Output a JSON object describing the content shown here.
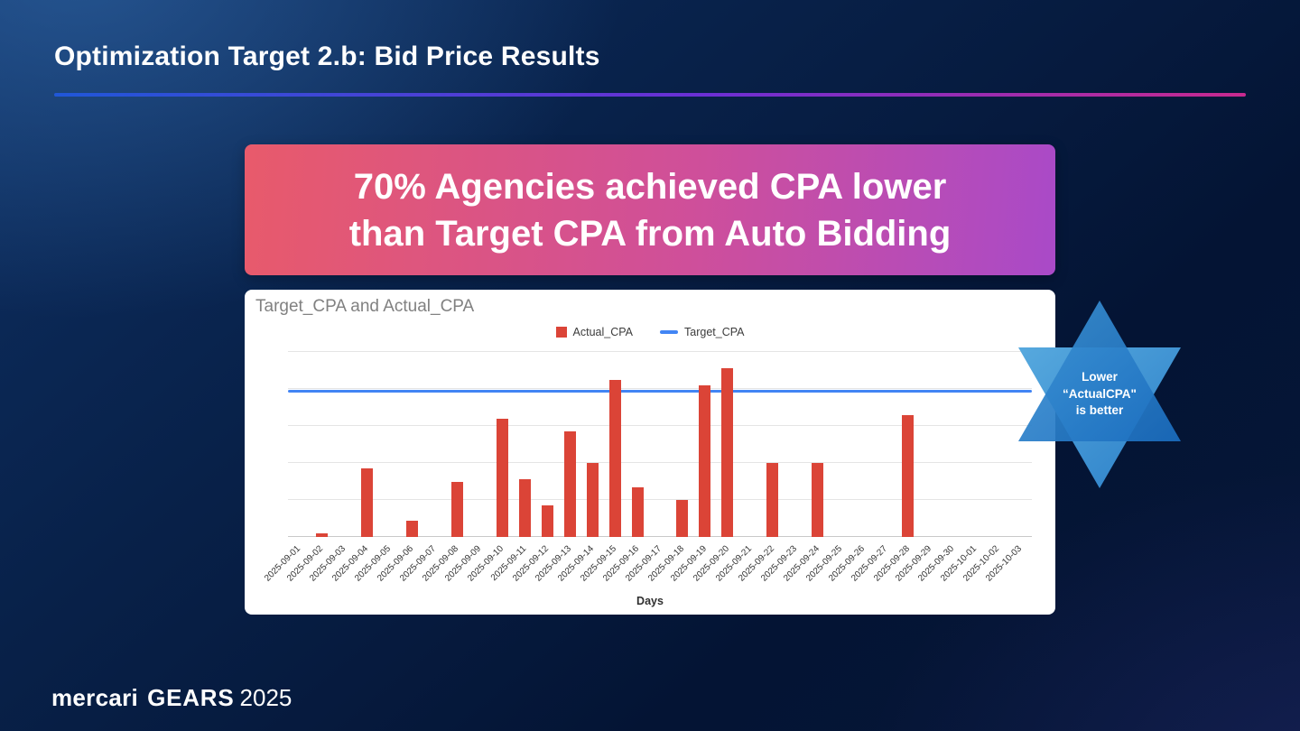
{
  "slide": {
    "title": "Optimization Target 2.b: Bid Price Results",
    "headline_line1": "70% Agencies achieved CPA lower",
    "headline_line2": "than Target CPA from Auto Bidding"
  },
  "badge": {
    "line1": "Lower",
    "line2": "“ActualCPA\"",
    "line3": "is better"
  },
  "footer": {
    "brand": "mercari",
    "product": "GEARS",
    "year": "2025"
  },
  "colors": {
    "bar": "#DB4437",
    "target_line": "#4285F4",
    "headline_gradient_left": "#e85a6b",
    "headline_gradient_right": "#a94ac8",
    "underline_gradient_left": "#2057d8",
    "underline_gradient_right": "#c92a8f",
    "badge_blue_light": "#57a9de",
    "badge_blue_dark": "#1a6cbe"
  },
  "chart_data": {
    "type": "bar",
    "title": "Target_CPA and Actual_CPA",
    "xlabel": "Days",
    "ylabel": "",
    "ylim": [
      0,
      100
    ],
    "grid": true,
    "legend_position": "top-center",
    "target_line": 78,
    "legend": [
      {
        "label": "Actual_CPA",
        "type": "bar",
        "color": "#DB4437"
      },
      {
        "label": "Target_CPA",
        "type": "line",
        "color": "#4285F4"
      }
    ],
    "categories": [
      "2025-09-01",
      "2025-09-02",
      "2025-09-03",
      "2025-09-04",
      "2025-09-05",
      "2025-09-06",
      "2025-09-07",
      "2025-09-08",
      "2025-09-09",
      "2025-09-10",
      "2025-09-11",
      "2025-09-12",
      "2025-09-13",
      "2025-09-14",
      "2025-09-15",
      "2025-09-16",
      "2025-09-17",
      "2025-09-18",
      "2025-09-19",
      "2025-09-20",
      "2025-09-21",
      "2025-09-22",
      "2025-09-23",
      "2025-09-24",
      "2025-09-25",
      "2025-09-26",
      "2025-09-27",
      "2025-09-28",
      "2025-09-29",
      "2025-09-30",
      "2025-10-01",
      "2025-10-02",
      "2025-10-03"
    ],
    "series": [
      {
        "name": "Actual_CPA",
        "values": [
          0,
          2,
          0,
          37,
          0,
          9,
          0,
          30,
          0,
          64,
          31,
          17,
          57,
          40,
          85,
          27,
          0,
          20,
          82,
          91,
          0,
          40,
          0,
          40,
          0,
          0,
          0,
          66,
          0,
          0,
          0,
          0,
          0
        ]
      },
      {
        "name": "Target_CPA",
        "constant": 78
      }
    ]
  }
}
